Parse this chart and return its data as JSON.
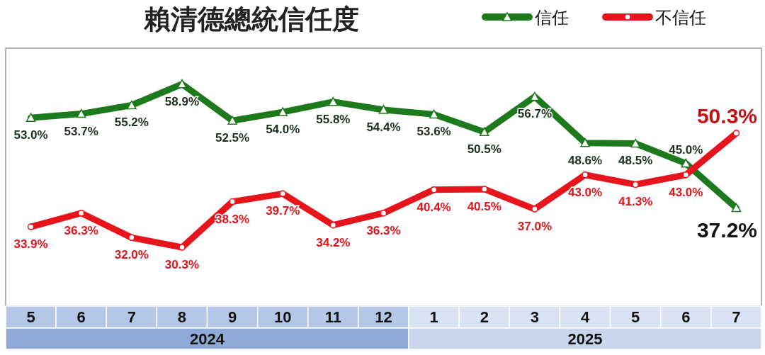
{
  "chart_data": {
    "type": "line",
    "title": "賴清德總統信任度",
    "categories": [
      "5",
      "6",
      "7",
      "8",
      "9",
      "10",
      "11",
      "12",
      "1",
      "2",
      "3",
      "4",
      "5",
      "6",
      "7"
    ],
    "annotations": [
      "2024",
      "2025"
    ],
    "series": [
      {
        "name": "信任",
        "color": "#1c7a1c",
        "marker": "triangle",
        "values": [
          53.0,
          53.7,
          55.2,
          58.9,
          52.5,
          54.0,
          55.8,
          54.4,
          53.6,
          50.5,
          56.7,
          48.6,
          48.5,
          45.0,
          37.2
        ],
        "value_labels": [
          "53.0%",
          "53.7%",
          "55.2%",
          "58.9%",
          "52.5%",
          "54.0%",
          "55.8%",
          "54.4%",
          "53.6%",
          "50.5%",
          "56.7%",
          "48.6%",
          "48.5%",
          "45.0%",
          "37.2%"
        ]
      },
      {
        "name": "不信任",
        "color": "#e8141c",
        "marker": "circle",
        "values": [
          33.9,
          36.3,
          32.0,
          30.3,
          38.3,
          39.7,
          34.2,
          36.3,
          40.4,
          40.5,
          37.0,
          43.0,
          41.3,
          43.0,
          50.3
        ],
        "value_labels": [
          "33.9%",
          "36.3%",
          "32.0%",
          "30.3%",
          "38.3%",
          "39.7%",
          "34.2%",
          "36.3%",
          "40.4%",
          "40.5%",
          "37.0%",
          "43.0%",
          "41.3%",
          "43.0%",
          "50.3%"
        ]
      }
    ],
    "tick_labels": "x",
    "legend": "top right",
    "line_style": "solid"
  }
}
